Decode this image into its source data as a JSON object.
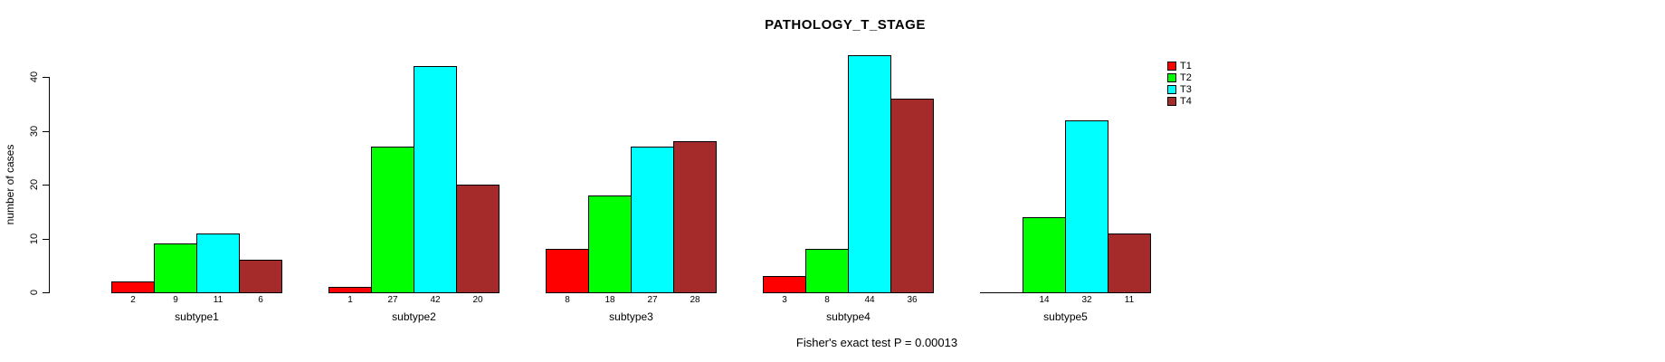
{
  "figure": {
    "title": "PATHOLOGY_T_STAGE",
    "annotation": "Fisher's exact test P = 0.00013",
    "background_color": "#ffffff",
    "text_color": "#000000"
  },
  "chart_data": {
    "type": "bar",
    "grouped": true,
    "title": "PATHOLOGY_T_STAGE",
    "xlabel": "",
    "ylabel": "number of cases",
    "categories": [
      "subtype1",
      "subtype2",
      "subtype3",
      "subtype4",
      "subtype5"
    ],
    "series": [
      {
        "name": "T1",
        "color": "#FF0000",
        "values": [
          2,
          1,
          8,
          3,
          0
        ]
      },
      {
        "name": "T2",
        "color": "#00FF00",
        "values": [
          9,
          27,
          18,
          8,
          14
        ]
      },
      {
        "name": "T3",
        "color": "#00FFFF",
        "values": [
          11,
          42,
          27,
          44,
          32
        ]
      },
      {
        "name": "T4",
        "color": "#A52A2A",
        "values": [
          6,
          20,
          28,
          36,
          11
        ]
      }
    ],
    "yticks": [
      0,
      10,
      20,
      30,
      40
    ],
    "ylim": [
      0,
      44
    ],
    "grid": false,
    "legend_position": "right-outside",
    "legend_items": [
      "T1",
      "T2",
      "T3",
      "T4"
    ],
    "bar_value_labels": "values printed below each bar; zero values have no bar and no label",
    "annotation": "Fisher's exact test P = 0.00013"
  }
}
